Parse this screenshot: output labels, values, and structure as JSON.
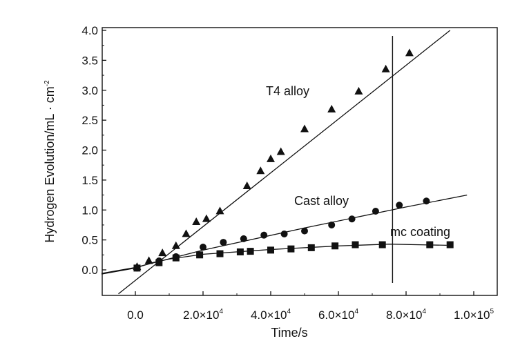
{
  "chart_data": {
    "type": "scatter",
    "xlabel": "Time/s",
    "ylabel": "Hydrogen Evolution/mL · cm",
    "ylabel_sup": "-2",
    "xlim": [
      -10000,
      105000
    ],
    "ylim": [
      -0.4,
      4.0
    ],
    "x_ticks": [
      {
        "value": 0,
        "mant": "0.0",
        "exp": ""
      },
      {
        "value": 20000,
        "mant": "2.0×10",
        "exp": "4"
      },
      {
        "value": 40000,
        "mant": "4.0×10",
        "exp": "4"
      },
      {
        "value": 60000,
        "mant": "6.0×10",
        "exp": "4"
      },
      {
        "value": 80000,
        "mant": "8.0×10",
        "exp": "4"
      },
      {
        "value": 100000,
        "mant": "1.0×10",
        "exp": "5"
      }
    ],
    "y_ticks": [
      "0.0",
      "0.5",
      "1.0",
      "1.5",
      "2.0",
      "2.5",
      "3.0",
      "3.5",
      "4.0"
    ],
    "vertical_line_x": 76000,
    "series": [
      {
        "name": "T4 alloy",
        "marker": "triangle",
        "x": [
          500,
          4000,
          8000,
          12000,
          15000,
          18000,
          21000,
          25000,
          33000,
          37000,
          40000,
          43000,
          50000,
          58000,
          66000,
          74000,
          81000
        ],
        "y": [
          0.05,
          0.15,
          0.28,
          0.4,
          0.6,
          0.8,
          0.85,
          0.98,
          1.4,
          1.65,
          1.85,
          1.97,
          2.35,
          2.68,
          2.98,
          3.35,
          3.62
        ],
        "fit": [
          [
            -5000,
            -0.4
          ],
          [
            93000,
            4.0
          ]
        ]
      },
      {
        "name": "Cast alloy",
        "marker": "circle",
        "x": [
          500,
          7000,
          12000,
          20000,
          26000,
          32000,
          38000,
          44000,
          50000,
          58000,
          64000,
          71000,
          78000,
          86000
        ],
        "y": [
          0.03,
          0.15,
          0.22,
          0.38,
          0.46,
          0.52,
          0.58,
          0.6,
          0.65,
          0.75,
          0.85,
          0.98,
          1.08,
          1.15
        ],
        "fit": [
          [
            -10000,
            -0.06
          ],
          [
            0,
            0.04
          ],
          [
            20000,
            0.33
          ],
          [
            50000,
            0.7
          ],
          [
            80000,
            1.05
          ],
          [
            98000,
            1.25
          ]
        ]
      },
      {
        "name": "mc coating",
        "marker": "square",
        "x": [
          500,
          7000,
          12000,
          19000,
          25000,
          31000,
          34000,
          40000,
          46000,
          52000,
          59000,
          65000,
          73000,
          87000,
          93000
        ],
        "y": [
          0.03,
          0.12,
          0.2,
          0.25,
          0.27,
          0.3,
          0.31,
          0.33,
          0.35,
          0.37,
          0.4,
          0.42,
          0.42,
          0.42,
          0.42
        ],
        "fit": [
          [
            -10000,
            -0.07
          ],
          [
            0,
            0.03
          ],
          [
            5000,
            0.12
          ],
          [
            10000,
            0.18
          ],
          [
            20000,
            0.26
          ],
          [
            40000,
            0.34
          ],
          [
            60000,
            0.4
          ],
          [
            75000,
            0.43
          ],
          [
            84000,
            0.42
          ],
          [
            92000,
            0.41
          ]
        ]
      }
    ]
  }
}
